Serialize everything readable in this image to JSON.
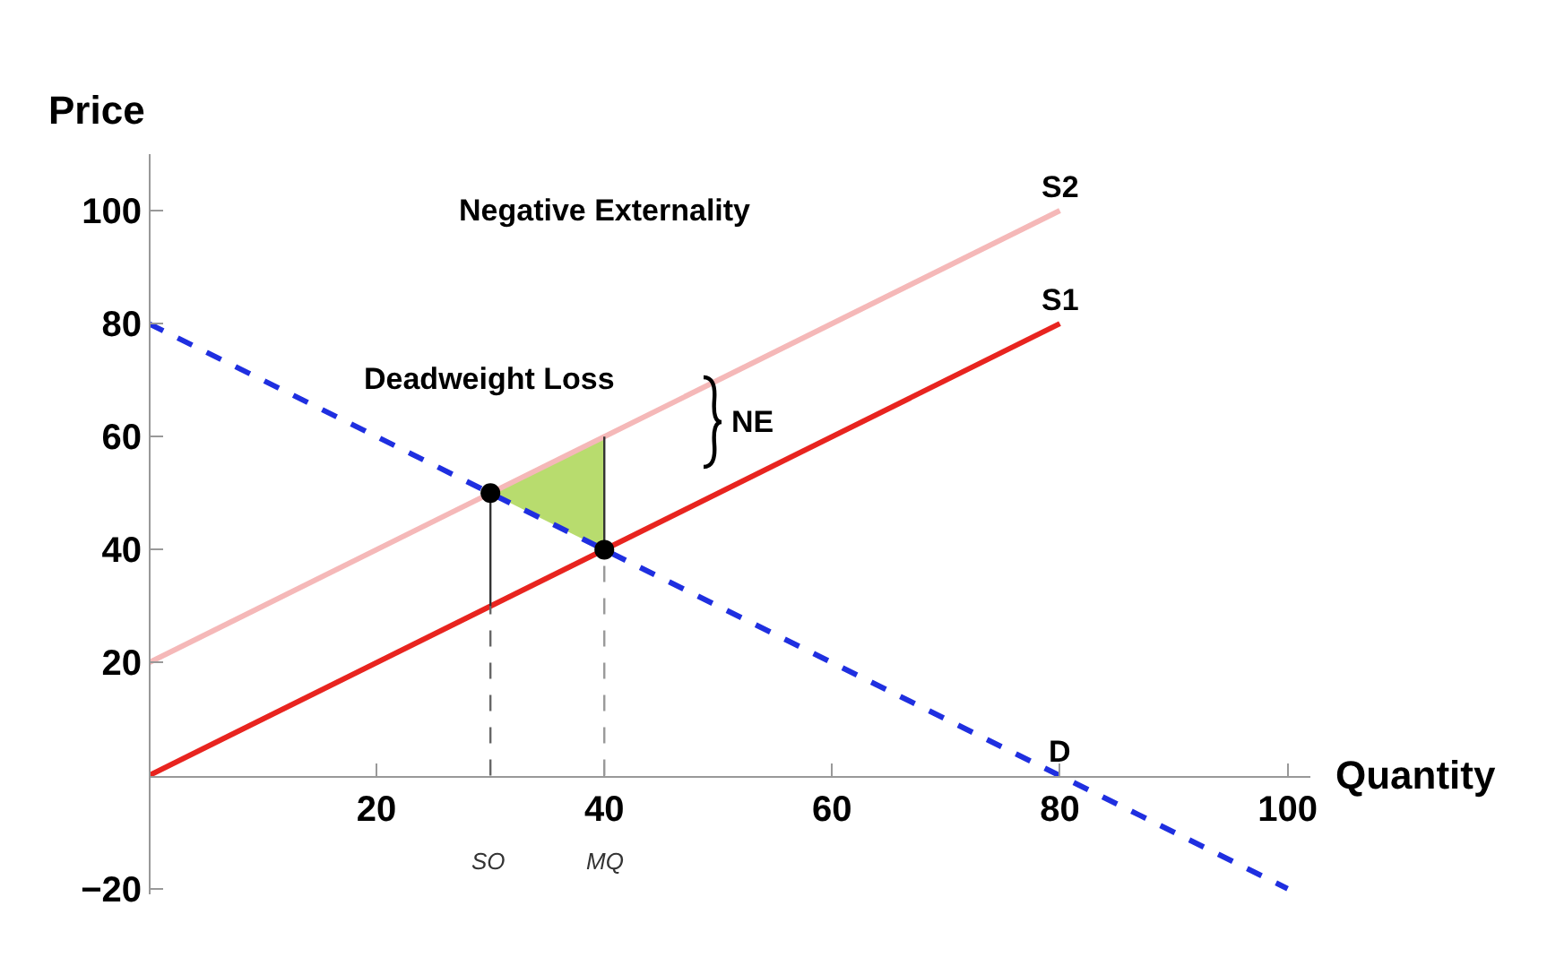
{
  "chart_data": {
    "type": "line",
    "xlabel": "Quantity",
    "ylabel": "Price",
    "xlim": [
      0,
      102
    ],
    "ylim": [
      -21,
      110
    ],
    "xticks": [
      20,
      40,
      60,
      80,
      100
    ],
    "yticks": [
      {
        "value": -20,
        "label": "−20"
      },
      20,
      40,
      60,
      80,
      100
    ],
    "grid": false,
    "legend": false,
    "series": [
      {
        "type": "area",
        "color": "#b8dc6e",
        "x": [
          30,
          40,
          40
        ],
        "values": [
          50,
          60,
          40
        ]
      },
      {
        "name": "S2",
        "color": "#f5b8b8",
        "x": [
          0,
          80
        ],
        "values": [
          20,
          100
        ],
        "line_style": "solid"
      },
      {
        "name": "S1",
        "color": "#e8241f",
        "x": [
          0,
          80
        ],
        "values": [
          0,
          80
        ],
        "line_style": "solid"
      },
      {
        "name": "D",
        "color": "#1f2fe0",
        "x": [
          0,
          80,
          100
        ],
        "values": [
          80,
          0,
          -20
        ],
        "line_style": "dashed"
      },
      {
        "type": "line",
        "color": "#333333",
        "x": [
          30,
          30
        ],
        "values": [
          30,
          50
        ],
        "line_style": "solid"
      },
      {
        "type": "line",
        "color": "#333333",
        "x": [
          40,
          40
        ],
        "values": [
          40,
          60
        ],
        "line_style": "solid"
      },
      {
        "type": "line",
        "color": "#666666",
        "x": [
          30,
          30
        ],
        "values": [
          0,
          30
        ],
        "line_style": "dashed"
      },
      {
        "type": "line",
        "color": "#999999",
        "x": [
          40,
          40
        ],
        "values": [
          0,
          40
        ],
        "line_style": "dashed"
      },
      {
        "type": "scatter",
        "color": "#000000",
        "marker": "circle",
        "x": [
          30,
          40
        ],
        "values": [
          50,
          40
        ]
      }
    ],
    "annotations": [
      "Negative Externality",
      "Deadweight Loss",
      "NE",
      "SO",
      "MQ"
    ]
  }
}
